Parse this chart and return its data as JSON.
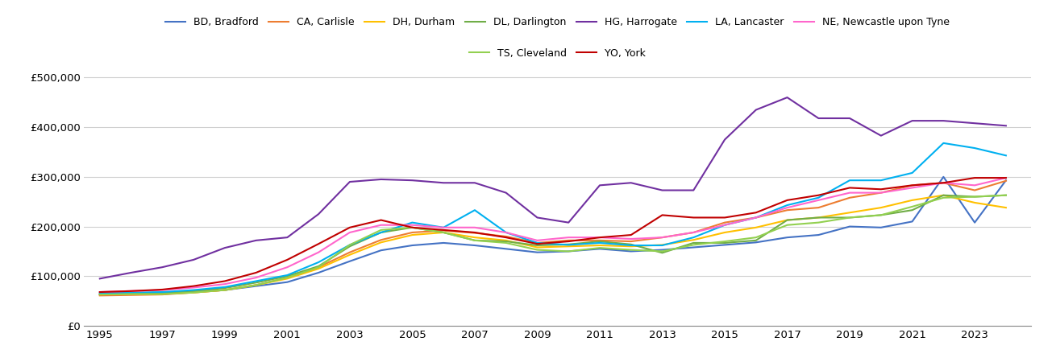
{
  "background_color": "#ffffff",
  "plot_bg_color": "#ffffff",
  "grid_color": "#d0d0d0",
  "years": [
    1995,
    1996,
    1997,
    1998,
    1999,
    2000,
    2001,
    2002,
    2003,
    2004,
    2005,
    2006,
    2007,
    2008,
    2009,
    2010,
    2011,
    2012,
    2013,
    2014,
    2015,
    2016,
    2017,
    2018,
    2019,
    2020,
    2021,
    2022,
    2023,
    2024
  ],
  "series": [
    {
      "label": "BD, Bradford",
      "color": "#4472c4",
      "values": [
        63000,
        64000,
        64000,
        68000,
        72000,
        80000,
        88000,
        107000,
        130000,
        152000,
        162000,
        167000,
        162000,
        155000,
        148000,
        150000,
        155000,
        150000,
        153000,
        158000,
        163000,
        168000,
        178000,
        183000,
        200000,
        198000,
        210000,
        300000,
        208000,
        293000
      ]
    },
    {
      "label": "CA, Carlisle",
      "color": "#ed7d31",
      "values": [
        61000,
        62000,
        63000,
        67000,
        72000,
        82000,
        97000,
        118000,
        148000,
        173000,
        188000,
        192000,
        187000,
        180000,
        167000,
        172000,
        172000,
        170000,
        178000,
        188000,
        208000,
        218000,
        233000,
        238000,
        258000,
        268000,
        283000,
        288000,
        273000,
        292000
      ]
    },
    {
      "label": "DH, Durham",
      "color": "#ffc000",
      "values": [
        63000,
        64000,
        64000,
        67000,
        72000,
        82000,
        95000,
        115000,
        143000,
        168000,
        183000,
        188000,
        178000,
        172000,
        158000,
        160000,
        162000,
        160000,
        163000,
        173000,
        188000,
        198000,
        213000,
        218000,
        228000,
        238000,
        253000,
        263000,
        248000,
        238000
      ]
    },
    {
      "label": "DL, Darlington",
      "color": "#70ad47",
      "values": [
        64000,
        65000,
        66000,
        70000,
        76000,
        87000,
        100000,
        120000,
        160000,
        188000,
        198000,
        188000,
        172000,
        170000,
        162000,
        164000,
        170000,
        164000,
        147000,
        167000,
        167000,
        172000,
        213000,
        218000,
        218000,
        223000,
        233000,
        263000,
        260000,
        263000
      ]
    },
    {
      "label": "HG, Harrogate",
      "color": "#7030a0",
      "values": [
        95000,
        107000,
        118000,
        133000,
        157000,
        172000,
        178000,
        225000,
        290000,
        295000,
        293000,
        288000,
        288000,
        268000,
        218000,
        208000,
        283000,
        288000,
        273000,
        273000,
        375000,
        435000,
        460000,
        418000,
        418000,
        383000,
        413000,
        413000,
        408000,
        403000
      ]
    },
    {
      "label": "LA, Lancaster",
      "color": "#00b0f0",
      "values": [
        66000,
        67000,
        68000,
        72000,
        78000,
        90000,
        102000,
        128000,
        163000,
        188000,
        208000,
        198000,
        233000,
        188000,
        167000,
        163000,
        167000,
        162000,
        162000,
        178000,
        203000,
        218000,
        243000,
        258000,
        293000,
        293000,
        308000,
        368000,
        358000,
        343000
      ]
    },
    {
      "label": "NE, Newcastle upon Tyne",
      "color": "#ff66cc",
      "values": [
        68000,
        70000,
        72000,
        77000,
        84000,
        97000,
        118000,
        148000,
        188000,
        203000,
        203000,
        198000,
        198000,
        188000,
        172000,
        178000,
        178000,
        175000,
        178000,
        188000,
        203000,
        218000,
        238000,
        253000,
        268000,
        268000,
        278000,
        288000,
        283000,
        298000
      ]
    },
    {
      "label": "TS, Cleveland",
      "color": "#92d050",
      "values": [
        63000,
        64000,
        64000,
        67000,
        72000,
        82000,
        97000,
        118000,
        163000,
        193000,
        198000,
        188000,
        172000,
        167000,
        153000,
        150000,
        157000,
        153000,
        150000,
        163000,
        170000,
        178000,
        203000,
        208000,
        218000,
        223000,
        240000,
        258000,
        260000,
        263000
      ]
    },
    {
      "label": "YO, York",
      "color": "#c00000",
      "values": [
        68000,
        70000,
        73000,
        80000,
        90000,
        107000,
        133000,
        165000,
        198000,
        213000,
        198000,
        193000,
        188000,
        178000,
        165000,
        170000,
        178000,
        183000,
        223000,
        218000,
        218000,
        228000,
        253000,
        263000,
        278000,
        275000,
        283000,
        288000,
        298000,
        298000
      ]
    }
  ],
  "ylim": [
    0,
    525000
  ],
  "yticks": [
    0,
    100000,
    200000,
    300000,
    400000,
    500000
  ],
  "xticks": [
    1995,
    1997,
    1999,
    2001,
    2003,
    2005,
    2007,
    2009,
    2011,
    2013,
    2015,
    2017,
    2019,
    2021,
    2023
  ],
  "legend_row1": [
    "BD, Bradford",
    "CA, Carlisle",
    "DH, Durham",
    "DL, Darlington",
    "HG, Harrogate",
    "LA, Lancaster",
    "NE, Newcastle upon Tyne"
  ],
  "legend_row2": [
    "TS, Cleveland",
    "YO, York"
  ]
}
